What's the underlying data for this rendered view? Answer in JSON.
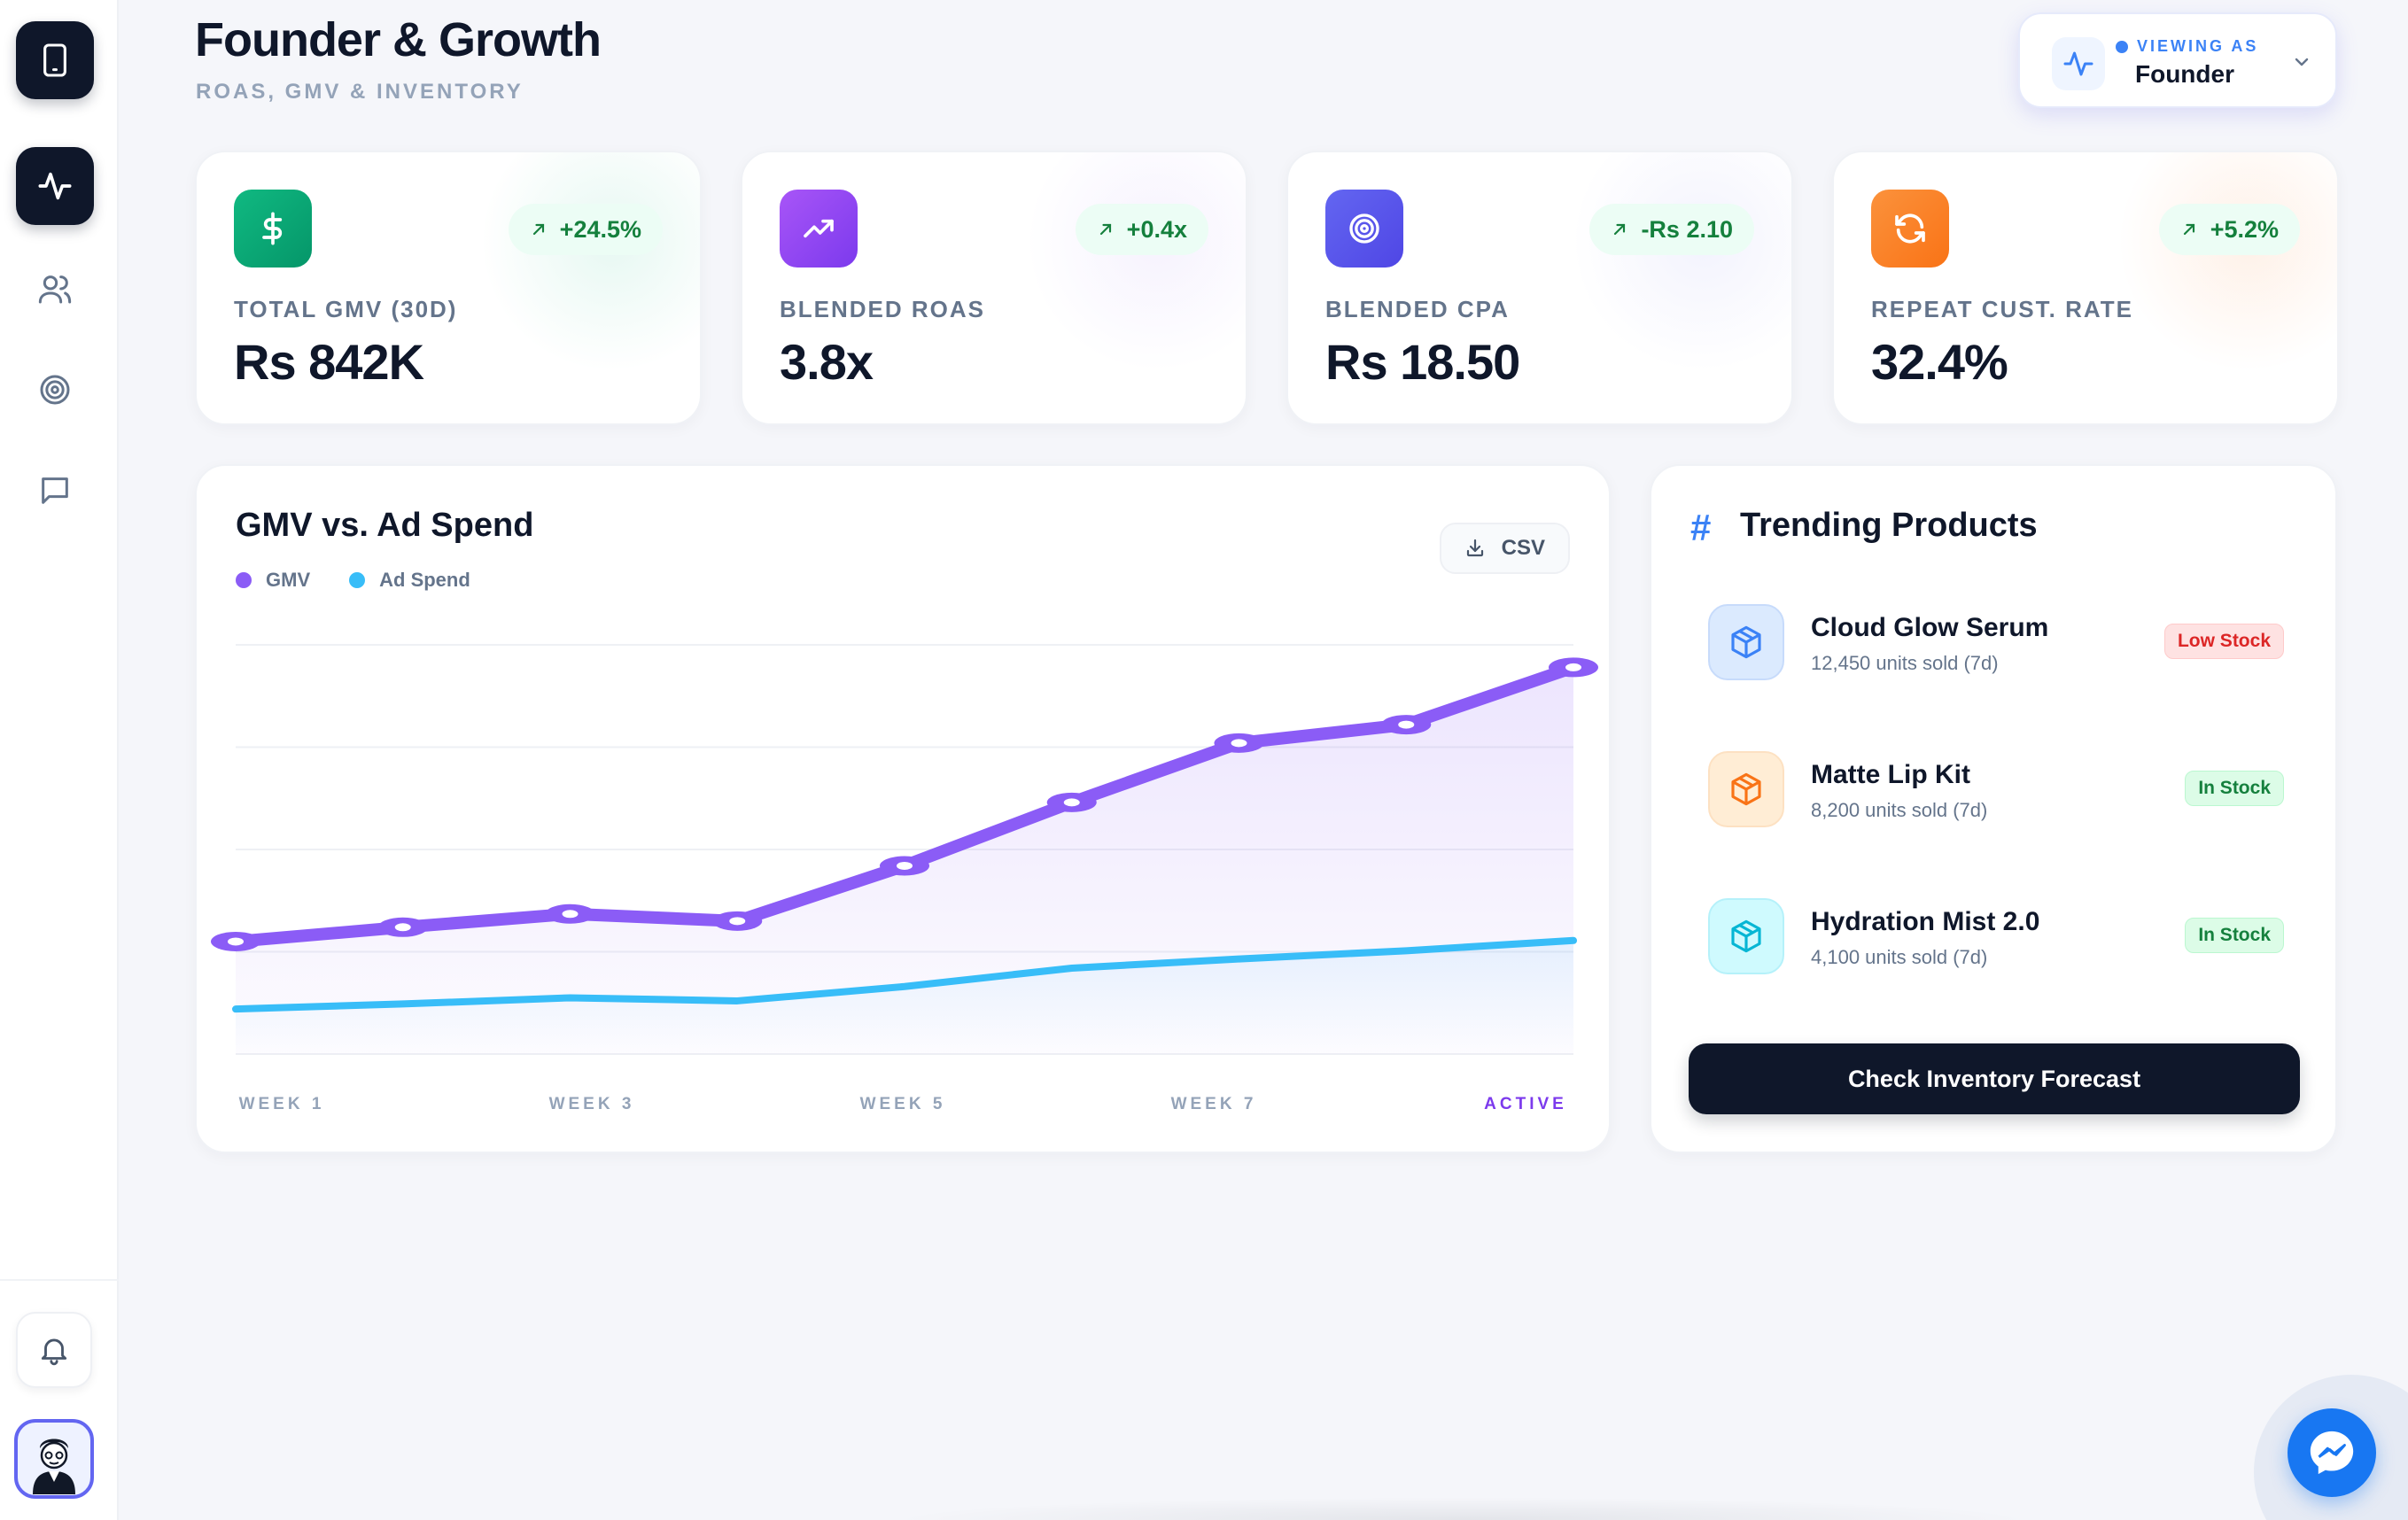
{
  "header": {
    "title": "Founder & Growth",
    "subtitle": "ROAS, GMV & INVENTORY"
  },
  "viewer": {
    "label": "VIEWING AS",
    "value": "Founder"
  },
  "sidebar": {
    "items": [
      {
        "name": "device-icon"
      },
      {
        "name": "activity-icon",
        "active": true
      },
      {
        "name": "users-icon"
      },
      {
        "name": "target-icon"
      },
      {
        "name": "message-icon"
      }
    ]
  },
  "kpis": [
    {
      "label": "TOTAL GMV (30D)",
      "value": "Rs 842K",
      "delta": "+24.5%",
      "icon": "dollar-icon",
      "color": "#10b981"
    },
    {
      "label": "BLENDED ROAS",
      "value": "3.8x",
      "delta": "+0.4x",
      "icon": "trending-up-icon",
      "color": "#8b5cf6"
    },
    {
      "label": "BLENDED CPA",
      "value": "Rs 18.50",
      "delta": "-Rs 2.10",
      "icon": "target-icon",
      "color": "#6366f1"
    },
    {
      "label": "REPEAT CUST. RATE",
      "value": "32.4%",
      "delta": "+5.2%",
      "icon": "refresh-icon",
      "color": "#f97316"
    }
  ],
  "chart": {
    "title": "GMV vs. Ad Spend",
    "csv_label": "CSV",
    "legend": [
      {
        "name": "GMV",
        "color": "#8b5cf6"
      },
      {
        "name": "Ad Spend",
        "color": "#38bdf8"
      }
    ],
    "x_ticks": [
      "WEEK 1",
      "WEEK 3",
      "WEEK 5",
      "WEEK 7",
      "ACTIVE"
    ]
  },
  "chart_data": {
    "type": "line",
    "x": [
      "Week 1",
      "Week 2",
      "Week 3",
      "Week 4",
      "Week 5",
      "Week 6",
      "Week 7",
      "Week 8",
      "Active"
    ],
    "series": [
      {
        "name": "GMV",
        "values": [
          11,
          12.4,
          13.7,
          13.0,
          18.4,
          24.6,
          30.4,
          32.2,
          37.8
        ]
      },
      {
        "name": "Ad Spend",
        "values": [
          4.4,
          4.9,
          5.5,
          5.2,
          6.6,
          8.4,
          9.3,
          10.1,
          11.1
        ]
      }
    ],
    "ylim": [
      0,
      40
    ],
    "grid": true
  },
  "trending": {
    "title": "Trending Products",
    "products": [
      {
        "name": "Cloud Glow Serum",
        "units": "12,450 units sold (7d)",
        "badge": "Low Stock",
        "status": "low",
        "color": "#3b82f6"
      },
      {
        "name": "Matte Lip Kit",
        "units": "8,200 units sold (7d)",
        "badge": "In Stock",
        "status": "ok",
        "color": "#f97316"
      },
      {
        "name": "Hydration Mist 2.0",
        "units": "4,100 units sold (7d)",
        "badge": "In Stock",
        "status": "ok",
        "color": "#06b6d4"
      }
    ],
    "cta": "Check Inventory Forecast"
  }
}
